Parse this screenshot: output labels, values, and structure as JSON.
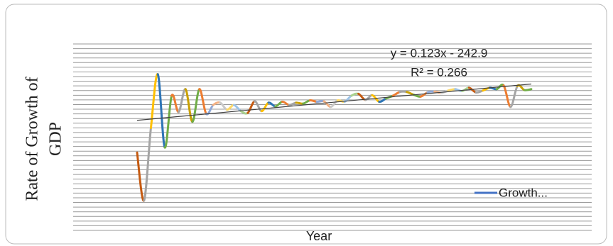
{
  "chart_data": {
    "type": "line",
    "y_axis_label": [
      "Rate of Growth of",
      "GDP"
    ],
    "x_axis_label": "Year",
    "categories": [
      null,
      null,
      null,
      null,
      null,
      null,
      null,
      null,
      null,
      null,
      null,
      null,
      null,
      null,
      null,
      null,
      null,
      null,
      null,
      null,
      null,
      null,
      null,
      null,
      null,
      null,
      null,
      null,
      null,
      null,
      null,
      null,
      null,
      null,
      null,
      null,
      null,
      null,
      null,
      null,
      null,
      null,
      null,
      null,
      null,
      null,
      null,
      null,
      null,
      null,
      null,
      null,
      null,
      null,
      null,
      null,
      null,
      null
    ],
    "series": [
      {
        "name": "Growth...",
        "color": "#4472c4",
        "values": [
          -8.3,
          -18.6,
          -3.0,
          8.5,
          -7.2,
          3.9,
          0.4,
          5.3,
          -1.7,
          5.3,
          0.0,
          1.9,
          2.4,
          0.9,
          1.9,
          0.6,
          0.2,
          2.7,
          0.6,
          2.4,
          1.6,
          2.6,
          1.9,
          2.4,
          2.2,
          2.9,
          2.6,
          2.7,
          1.5,
          2.9,
          2.6,
          3.9,
          4.3,
          3.0,
          4.0,
          2.6,
          3.3,
          3.9,
          4.7,
          4.7,
          4.1,
          3.7,
          4.6,
          4.8,
          4.5,
          5.0,
          5.3,
          4.9,
          5.6,
          4.6,
          5.0,
          5.6,
          5.3,
          6.1,
          1.5,
          6.0,
          5.1,
          5.3
        ],
        "point_colors": [
          "#c55a11",
          "#a5a5a5",
          "#ffc000",
          "#2e75b6",
          "#70ad47",
          "#ed7d31",
          "#a5a5a5",
          "#c9a000",
          "#70ad47",
          "#ed7d31",
          "#8fa8d8",
          "#f4b183",
          "#c9c9c9",
          "#ffd966",
          "#9dc3e6",
          "#a9d18e"
        ]
      }
    ],
    "trendline": {
      "equation": "y = 0.123x - 242.9",
      "r_squared": "R² = 0.266",
      "color": "#404040"
    },
    "ylim": [
      -25,
      15
    ],
    "yticks": [
      -25,
      -24,
      -23,
      -22,
      -21,
      -20,
      -19,
      -18,
      -17,
      -16,
      -15,
      -14,
      -13,
      -12,
      -11,
      -10,
      -9,
      -8,
      -7,
      -6,
      -5,
      -4,
      -3,
      -2,
      -1,
      0,
      1,
      2,
      3,
      4,
      5,
      6,
      7,
      8,
      9,
      10,
      11,
      12,
      13,
      14,
      15
    ],
    "grid": true,
    "legend": "bottom-right"
  }
}
